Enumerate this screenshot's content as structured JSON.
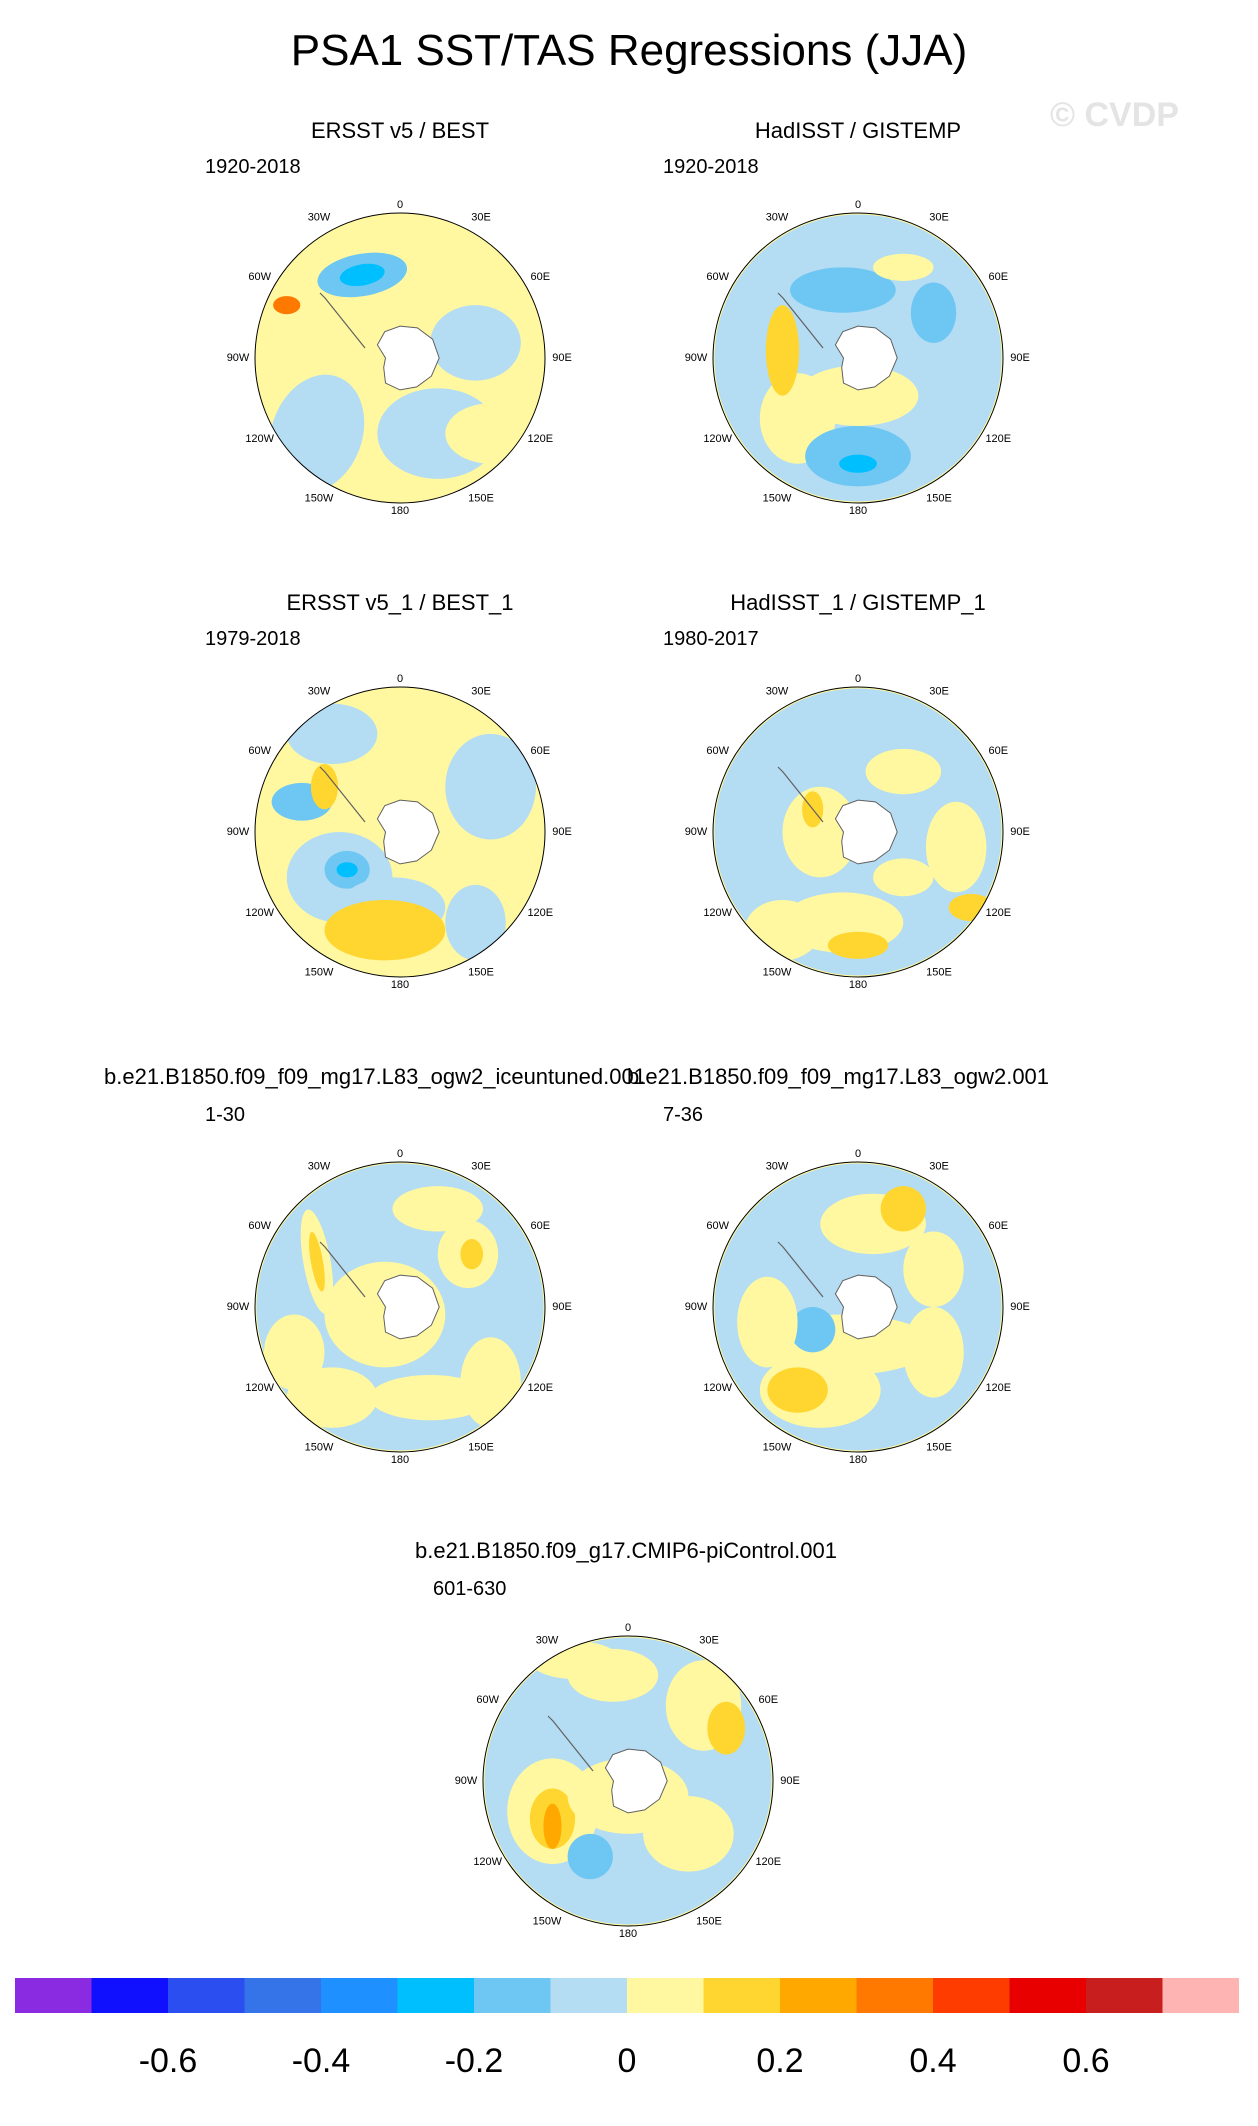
{
  "title": "PSA1 SST/TAS Regressions (JJA)",
  "watermark": "© CVDP",
  "panels": [
    {
      "title": "ERSST v5 / BEST",
      "period": "1920-2018"
    },
    {
      "title": "HadISST / GISTEMP",
      "period": "1920-2018"
    },
    {
      "title": "ERSST v5_1 / BEST_1",
      "period": "1979-2018"
    },
    {
      "title": "HadISST_1 / GISTEMP_1",
      "period": "1980-2017"
    },
    {
      "title": "b.e21.B1850.f09_f09_mg17.L83_ogw2_iceuntuned.001",
      "period": "1-30"
    },
    {
      "title": "b.e21.B1850.f09_f09_mg17.L83_ogw2.001",
      "period": "7-36"
    },
    {
      "title": "b.e21.B1850.f09_g17.CMIP6-piControl.001",
      "period": "601-630"
    }
  ],
  "longitude_labels": [
    "0",
    "30E",
    "60E",
    "90E",
    "120E",
    "150E",
    "180",
    "150W",
    "120W",
    "90W",
    "60W",
    "30W"
  ],
  "colorbar": {
    "colors": [
      "#8a2be2",
      "#1010ff",
      "#2a4ef0",
      "#3473e8",
      "#1e90ff",
      "#00bfff",
      "#6ec6f2",
      "#b4dcf2",
      "#fff8a0",
      "#ffd630",
      "#ffa800",
      "#ff7800",
      "#ff3c00",
      "#e80000",
      "#c81e1e",
      "#ffb4b4"
    ],
    "labels": [
      "-0.6",
      "-0.4",
      "-0.2",
      "0",
      "0.2",
      "0.4",
      "0.6"
    ],
    "label_values": [
      -0.6,
      -0.4,
      -0.2,
      0,
      0.2,
      0.4,
      0.6
    ],
    "levels": [
      -0.7,
      -0.6,
      -0.5,
      -0.4,
      -0.3,
      -0.2,
      -0.1,
      0,
      0.1,
      0.2,
      0.3,
      0.4,
      0.5,
      0.6,
      0.7
    ]
  },
  "chart_data": {
    "type": "heatmap",
    "projection": "south polar stereographic",
    "variable": "SST/TAS regression onto PSA1",
    "season": "JJA",
    "value_range": [
      -0.7,
      0.7
    ],
    "panels": [
      {
        "name": "ERSST v5 / BEST",
        "period": "1920-2018",
        "dominant_sign": "mixed",
        "min_approx": -0.35,
        "max_approx": 0.3
      },
      {
        "name": "HadISST / GISTEMP",
        "period": "1920-2018",
        "dominant_sign": "negative",
        "min_approx": -0.3,
        "max_approx": 0.15
      },
      {
        "name": "ERSST v5_1 / BEST_1",
        "period": "1979-2018",
        "dominant_sign": "mixed",
        "min_approx": -0.35,
        "max_approx": 0.25
      },
      {
        "name": "HadISST_1 / GISTEMP_1",
        "period": "1980-2017",
        "dominant_sign": "mixed",
        "min_approx": -0.25,
        "max_approx": 0.25
      },
      {
        "name": "b.e21.B1850.f09_f09_mg17.L83_ogw2_iceuntuned.001",
        "period": "1-30",
        "dominant_sign": "mixed",
        "min_approx": -0.25,
        "max_approx": 0.3
      },
      {
        "name": "b.e21.B1850.f09_f09_mg17.L83_ogw2.001",
        "period": "7-36",
        "dominant_sign": "mixed",
        "min_approx": -0.2,
        "max_approx": 0.3
      },
      {
        "name": "b.e21.B1850.f09_g17.CMIP6-piControl.001",
        "period": "601-630",
        "dominant_sign": "mixed",
        "min_approx": -0.2,
        "max_approx": 0.4
      }
    ]
  }
}
